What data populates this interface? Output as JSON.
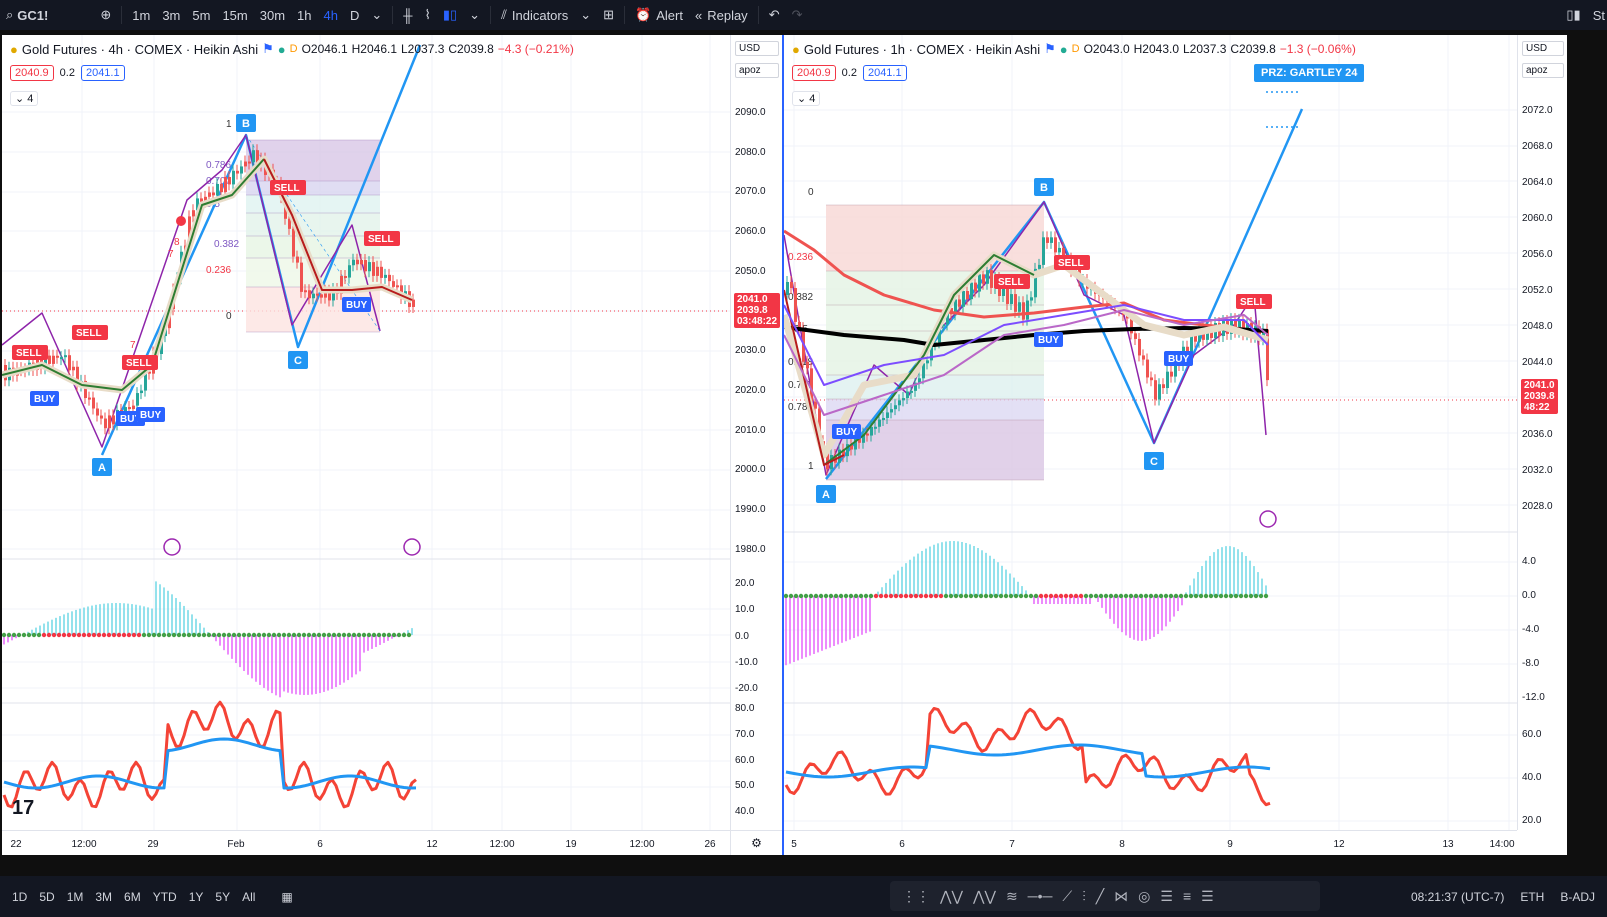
{
  "topbar": {
    "symbol": "GC1!",
    "intervals": [
      "1m",
      "3m",
      "5m",
      "15m",
      "30m",
      "1h",
      "4h",
      "D"
    ],
    "active_interval": "4h",
    "indicators": "Indicators",
    "alert": "Alert",
    "replay": "Replay",
    "right_text": "St"
  },
  "left": {
    "title": "Gold Futures · 4h · COMEX · Heikin Ashi",
    "d": "D",
    "o": "O2046.1",
    "h": "H2046.1",
    "l": "L2037.3",
    "c": "C2039.8",
    "chg": "−4.3 (−0.21%)",
    "bid": "2040.9",
    "spread": "0.2",
    "ask": "2041.1",
    "collapse": "4",
    "currency": "USD",
    "scale": "apoz",
    "price_ticks": [
      "2090.0",
      "2080.0",
      "2070.0",
      "2060.0",
      "2050.0",
      "2040.0",
      "2030.0",
      "2020.0",
      "2010.0",
      "2000.0",
      "1990.0",
      "1980.0"
    ],
    "price_tag": [
      "2041.0",
      "2039.8",
      "03:48:22"
    ],
    "osc_ticks": [
      "20.0",
      "10.0",
      "0.0",
      "-10.0",
      "-20.0"
    ],
    "rsi_ticks": [
      "80.0",
      "70.0",
      "60.0",
      "50.0",
      "40.0"
    ],
    "time_ticks": [
      "22",
      "12:00",
      "29",
      "Feb",
      "6",
      "12",
      "12:00",
      "19",
      "12:00",
      "26"
    ],
    "fib_labels": [
      "0.786",
      "0.707",
      "0.5",
      "0.382",
      "0.236",
      "0",
      "1"
    ],
    "pattern_points": [
      "A",
      "B",
      "C"
    ],
    "signals": [
      "SELL",
      "SELL",
      "SELL",
      "SELL",
      "BUY",
      "BUY",
      "BUY",
      "BUY"
    ],
    "aux_labels": [
      "7",
      "8",
      "7"
    ]
  },
  "right": {
    "title": "Gold Futures · 1h · COMEX · Heikin Ashi",
    "d": "D",
    "o": "O2043.0",
    "h": "H2043.0",
    "l": "L2037.3",
    "c": "C2039.8",
    "chg": "−1.3 (−0.06%)",
    "bid": "2040.9",
    "spread": "0.2",
    "ask": "2041.1",
    "collapse": "4",
    "currency": "USD",
    "scale": "apoz",
    "price_ticks": [
      "2072.0",
      "2068.0",
      "2064.0",
      "2060.0",
      "2056.0",
      "2052.0",
      "2048.0",
      "2044.0",
      "2040.0",
      "2036.0",
      "2032.0",
      "2028.0"
    ],
    "price_tag": [
      "2041.0",
      "2039.8",
      "48:22"
    ],
    "osc_ticks": [
      "4.0",
      "0.0",
      "-4.0",
      "-8.0",
      "-12.0"
    ],
    "rsi_ticks": [
      "60.0",
      "40.0",
      "20.0"
    ],
    "time_ticks": [
      "5",
      "6",
      "7",
      "8",
      "9",
      "12",
      "13",
      "14:00"
    ],
    "fib_labels": [
      "0",
      "0.236",
      "0.382",
      "0.5",
      "0.618",
      "0.707",
      "0.786",
      "1"
    ],
    "pattern_points": [
      "A",
      "B",
      "C"
    ],
    "signals": [
      "SELL",
      "SELL",
      "SELL",
      "BUY",
      "BUY",
      "BUY"
    ],
    "prz": "PRZ: GARTLEY 24"
  },
  "bottombar": {
    "ranges": [
      "1D",
      "5D",
      "1M",
      "3M",
      "6M",
      "YTD",
      "1Y",
      "5Y",
      "All"
    ],
    "time": "08:21:37 (UTC-7)",
    "session": "ETH",
    "adj": "B-ADJ"
  },
  "colors": {
    "sell": "#f23645",
    "buy": "#2962ff",
    "pattern": "#2196f3",
    "accent": "#2962ff"
  }
}
